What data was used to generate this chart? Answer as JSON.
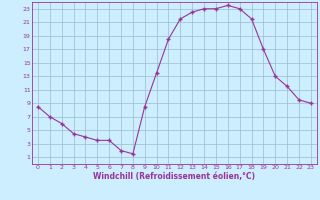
{
  "x": [
    0,
    1,
    2,
    3,
    4,
    5,
    6,
    7,
    8,
    9,
    10,
    11,
    12,
    13,
    14,
    15,
    16,
    17,
    18,
    19,
    20,
    21,
    22,
    23
  ],
  "y": [
    8.5,
    7.0,
    6.0,
    4.5,
    4.0,
    3.5,
    3.5,
    2.0,
    1.5,
    8.5,
    13.5,
    18.5,
    21.5,
    22.5,
    23.0,
    23.0,
    23.5,
    23.0,
    21.5,
    17.0,
    13.0,
    11.5,
    9.5,
    9.0
  ],
  "line_color": "#993399",
  "marker": "+",
  "bg_color": "#cceeff",
  "grid_color": "#99bbcc",
  "xlabel": "Windchill (Refroidissement éolien,°C)",
  "xlabel_color": "#993399",
  "tick_color": "#993399",
  "ylim": [
    0,
    24
  ],
  "xlim": [
    -0.5,
    23.5
  ],
  "yticks": [
    1,
    3,
    5,
    7,
    9,
    11,
    13,
    15,
    17,
    19,
    21,
    23
  ],
  "xticks": [
    0,
    1,
    2,
    3,
    4,
    5,
    6,
    7,
    8,
    9,
    10,
    11,
    12,
    13,
    14,
    15,
    16,
    17,
    18,
    19,
    20,
    21,
    22,
    23
  ],
  "spine_color": "#993399"
}
